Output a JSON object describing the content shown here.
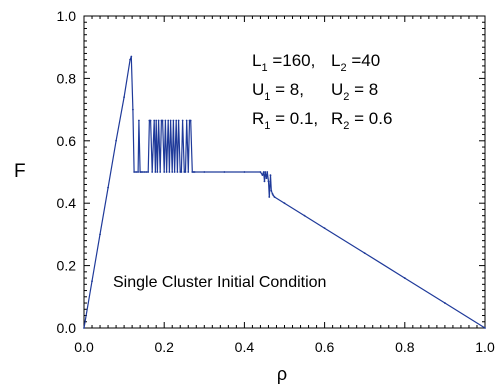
{
  "chart_data": {
    "type": "line",
    "xlabel": "ρ",
    "ylabel": "F",
    "xlim": [
      0.0,
      1.0
    ],
    "ylim": [
      0.0,
      1.0
    ],
    "x_ticks": [
      "0.0",
      "0.2",
      "0.4",
      "0.6",
      "0.8",
      "1.0"
    ],
    "y_ticks": [
      "0.0",
      "0.2",
      "0.4",
      "0.6",
      "0.8",
      "1.0"
    ],
    "grid": false,
    "line_color": "#1f3a9a",
    "annotation_params": [
      {
        "items": [
          {
            "name": "L",
            "sub": "1",
            "value": "=160"
          },
          {
            "name": "L",
            "sub": "2",
            "value": "=40"
          }
        ]
      },
      {
        "items": [
          {
            "name": "U",
            "sub": "1",
            "value": "= 8"
          },
          {
            "name": "U",
            "sub": "2",
            "value": "= 8"
          }
        ]
      },
      {
        "items": [
          {
            "name": "R",
            "sub": "1",
            "value": "= 0.1"
          },
          {
            "name": "R",
            "sub": "2",
            "value": "= 0.6"
          }
        ]
      }
    ],
    "annotation_condition": "Single Cluster Initial Condition",
    "series": [
      {
        "x": [
          0.0,
          0.02,
          0.04,
          0.06,
          0.08,
          0.1,
          0.115,
          0.118,
          0.122,
          0.125,
          0.13,
          0.135,
          0.137,
          0.14,
          0.142,
          0.145,
          0.15,
          0.155,
          0.16,
          0.163,
          0.166,
          0.17,
          0.175,
          0.178,
          0.18,
          0.183,
          0.186,
          0.19,
          0.193,
          0.196,
          0.2,
          0.203,
          0.206,
          0.21,
          0.213,
          0.216,
          0.22,
          0.223,
          0.226,
          0.23,
          0.233,
          0.236,
          0.24,
          0.243,
          0.246,
          0.25,
          0.253,
          0.256,
          0.26,
          0.263,
          0.266,
          0.27,
          0.273,
          0.276,
          0.3,
          0.35,
          0.4,
          0.44,
          0.445,
          0.448,
          0.45,
          0.452,
          0.455,
          0.457,
          0.46,
          0.462,
          0.465,
          0.467,
          0.47,
          0.472,
          0.475,
          0.5,
          0.55,
          0.6,
          0.7,
          0.8,
          0.9,
          1.0
        ],
        "y": [
          0.0,
          0.15,
          0.3,
          0.45,
          0.6,
          0.74,
          0.86,
          0.87,
          0.7,
          0.5,
          0.5,
          0.5,
          0.665,
          0.5,
          0.5,
          0.5,
          0.5,
          0.5,
          0.5,
          0.665,
          0.665,
          0.5,
          0.665,
          0.5,
          0.665,
          0.5,
          0.665,
          0.5,
          0.665,
          0.665,
          0.5,
          0.665,
          0.5,
          0.665,
          0.5,
          0.665,
          0.5,
          0.665,
          0.5,
          0.665,
          0.5,
          0.665,
          0.5,
          0.5,
          0.665,
          0.5,
          0.5,
          0.665,
          0.5,
          0.665,
          0.665,
          0.5,
          0.5,
          0.5,
          0.5,
          0.5,
          0.5,
          0.5,
          0.49,
          0.5,
          0.47,
          0.5,
          0.48,
          0.5,
          0.47,
          0.42,
          0.49,
          0.44,
          0.43,
          0.425,
          0.42,
          0.4,
          0.36,
          0.32,
          0.24,
          0.16,
          0.08,
          0.0
        ]
      }
    ]
  }
}
